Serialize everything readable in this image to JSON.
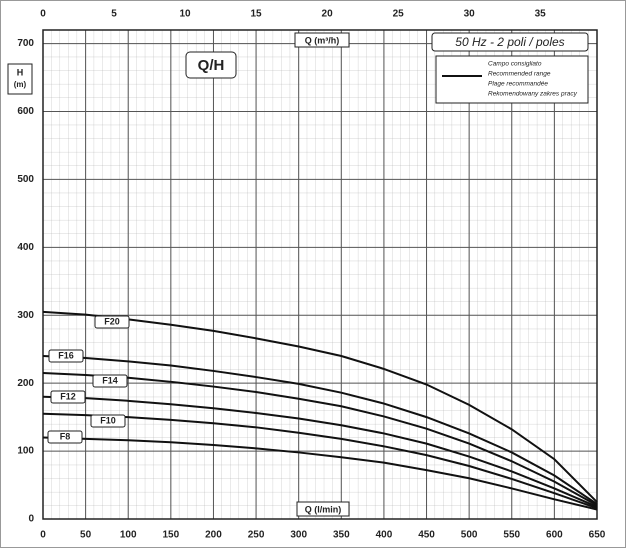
{
  "chart_data": {
    "type": "line",
    "title": "Q/H",
    "subtitle": "50 Hz - 2 poli / poles",
    "x_label": "Q (l/min)",
    "x2_label": "Q (m³/h)",
    "y_label": [
      "H",
      "(m)"
    ],
    "legend_text": [
      "Campo consigliato",
      "Recommended range",
      "Plage recommandée",
      "Rekomendowany zakres pracy"
    ],
    "x": [
      0,
      50,
      100,
      150,
      200,
      250,
      300,
      350,
      400,
      450,
      500,
      550,
      600,
      650
    ],
    "series": [
      {
        "name": "F20",
        "color": "#111111",
        "values": [
          305,
          301,
          294,
          286,
          277,
          266,
          254,
          240,
          221,
          198,
          168,
          132,
          88,
          25
        ]
      },
      {
        "name": "F16",
        "color": "#111111",
        "values": [
          240,
          237,
          232,
          226,
          218,
          209,
          199,
          186,
          170,
          150,
          126,
          98,
          64,
          22
        ]
      },
      {
        "name": "F14",
        "color": "#111111",
        "values": [
          215,
          212,
          208,
          202,
          195,
          187,
          177,
          166,
          151,
          133,
          111,
          85,
          55,
          20
        ]
      },
      {
        "name": "F12",
        "color": "#111111",
        "values": [
          180,
          178,
          174,
          169,
          163,
          156,
          148,
          138,
          126,
          111,
          92,
          70,
          45,
          18
        ]
      },
      {
        "name": "F10",
        "color": "#111111",
        "values": [
          155,
          153,
          150,
          146,
          141,
          135,
          127,
          118,
          107,
          94,
          78,
          59,
          38,
          16
        ]
      },
      {
        "name": "F8",
        "color": "#111111",
        "values": [
          120,
          118,
          116,
          113,
          109,
          104,
          98,
          91,
          83,
          72,
          60,
          45,
          29,
          14
        ]
      }
    ],
    "xlim": [
      0,
      650
    ],
    "xticks": [
      0,
      50,
      100,
      150,
      200,
      250,
      300,
      350,
      400,
      450,
      500,
      550,
      600,
      650
    ],
    "x2lim": [
      0,
      39
    ],
    "x2ticks": [
      0,
      5,
      10,
      15,
      20,
      25,
      30,
      35
    ],
    "ylim": [
      0,
      720
    ],
    "yticks": [
      0,
      100,
      200,
      300,
      400,
      500,
      600,
      700
    ],
    "grid": true
  }
}
